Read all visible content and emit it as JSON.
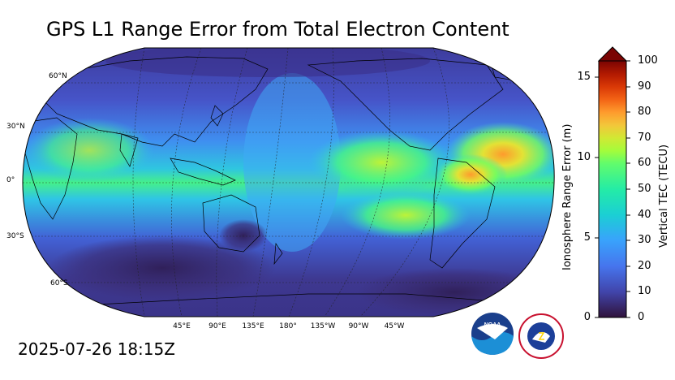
{
  "title": "GPS L1 Range Error from Total Electron Content",
  "timestamp": "2025-07-26 18:15Z",
  "map": {
    "lat_labels": [
      "60°N",
      "30°N",
      "0°",
      "30°S",
      "60°S"
    ],
    "lon_labels": [
      "45°E",
      "90°E",
      "135°E",
      "180°",
      "135°W",
      "90°W",
      "45°W"
    ]
  },
  "colorbar": {
    "left_label": "Ionosphere Range Error (m)",
    "right_label": "Vertical TEC (TECU)",
    "left_ticks": [
      "0",
      "5",
      "10",
      "15"
    ],
    "right_ticks": [
      "0",
      "10",
      "20",
      "30",
      "40",
      "50",
      "60",
      "70",
      "80",
      "90",
      "100"
    ],
    "tec_range": [
      0,
      100
    ],
    "error_range": [
      0,
      16.2
    ],
    "extend": "max"
  },
  "logos": {
    "noaa": "NOAA",
    "nws": "NATIONAL WEATHER SERVICE"
  },
  "colors": {
    "low": "#30123b",
    "mid": "#28bceb",
    "high": "#7a0403"
  }
}
